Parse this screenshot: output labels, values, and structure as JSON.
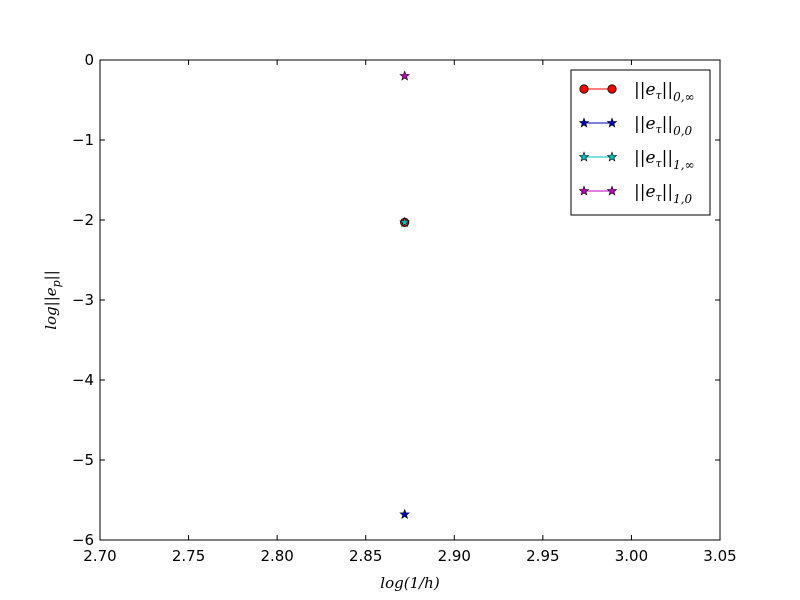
{
  "chart_data": {
    "type": "scatter",
    "xlabel": "log(1/h)",
    "ylabel": "log||e_p||",
    "xlim": [
      2.7,
      3.05
    ],
    "ylim": [
      -6,
      0
    ],
    "xticks": [
      "2.70",
      "2.75",
      "2.80",
      "2.85",
      "2.90",
      "2.95",
      "3.00",
      "3.05"
    ],
    "yticks": [
      "0",
      "−1",
      "−2",
      "−3",
      "−4",
      "−5",
      "−6"
    ],
    "grid": false,
    "legend_position": "top-right",
    "series": [
      {
        "name": "||e_τ||_{0,∞}",
        "color": "#ff0000",
        "marker": "circle",
        "x": [
          2.872
        ],
        "y": [
          -2.03
        ]
      },
      {
        "name": "||e_τ||_{0,0}",
        "color": "#0000bf",
        "marker": "star",
        "x": [
          2.872
        ],
        "y": [
          -5.68
        ]
      },
      {
        "name": "||e_τ||_{1,∞}",
        "color": "#00bfbf",
        "marker": "star",
        "x": [
          2.872
        ],
        "y": [
          -2.03
        ]
      },
      {
        "name": "||e_τ||_{1,0}",
        "color": "#bf00bf",
        "marker": "star",
        "x": [
          2.872
        ],
        "y": [
          -0.2
        ]
      }
    ]
  }
}
